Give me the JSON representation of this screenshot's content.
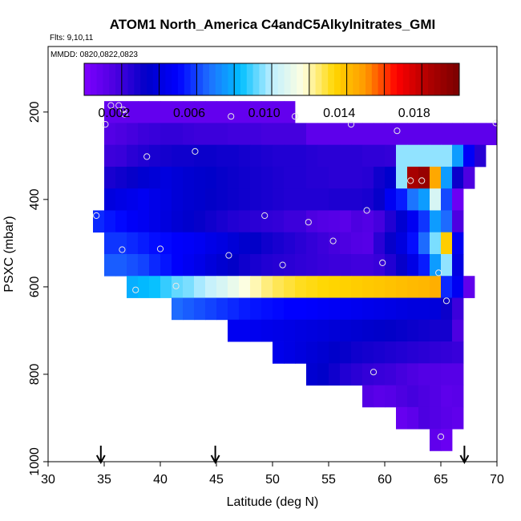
{
  "chart_data": {
    "type": "heatmap",
    "title": "ATOM1 North_America C4andC5Alkylnitrates_GMI",
    "annotations": {
      "flights": "Flts: 9,10,11",
      "dates": "MMDD: 0820,0822,0823"
    },
    "xlabel": "Latitude (deg N)",
    "ylabel": "PSXC (mbar)",
    "xlim": [
      30,
      70
    ],
    "ylim": [
      1000,
      50
    ],
    "y_reversed": true,
    "x_ticks": [
      "30",
      "35",
      "40",
      "45",
      "50",
      "55",
      "60",
      "65",
      "70"
    ],
    "y_ticks": [
      "200",
      "400",
      "600",
      "800",
      "1000"
    ],
    "colorbar": {
      "range": [
        0.0004,
        0.0204
      ],
      "tick_labels": [
        "0.002",
        "0.006",
        "0.010",
        "0.014",
        "0.018"
      ],
      "tick_values": [
        0.002,
        0.006,
        0.01,
        0.014,
        0.018
      ],
      "colors": [
        "#7f00ff",
        "#4b00e0",
        "#0000c8",
        "#0000ff",
        "#1e6fff",
        "#00bfff",
        "#bfefff",
        "#ffffe0",
        "#ffd700",
        "#ff9900",
        "#ff0000",
        "#b00000",
        "#7a0000"
      ]
    },
    "arrows_latitude": [
      34.7,
      44.9,
      67.1
    ],
    "cell_width_deg": 1,
    "cell_height_mbar": 50,
    "rows": [
      {
        "p": 200,
        "x0": 35,
        "v": [
          0.0013,
          0.0013,
          0.0013,
          0.0013,
          0.0013,
          0.0013,
          0.0013,
          0.0013,
          0.0013,
          0.0013,
          0.0013,
          0.0013,
          0.0013,
          0.0013,
          0.0013,
          0.0013,
          0.0013
        ]
      },
      {
        "p": 250,
        "x0": 35,
        "v": [
          0.0018,
          0.002,
          0.0022,
          0.0024,
          0.0025,
          0.0026,
          0.0026,
          0.0025,
          0.0024,
          0.0024,
          0.0024,
          0.0023,
          0.0023,
          0.0023,
          0.0022,
          0.0022,
          0.0022,
          0.0022,
          0.0015,
          0.0015,
          0.0015,
          0.0015,
          0.0015,
          0.0015,
          0.0015,
          0.0015,
          0.0015,
          0.0015,
          0.0015,
          0.0015,
          0.0015,
          0.0015,
          0.0015,
          0.0015,
          0.0015
        ]
      },
      {
        "p": 300,
        "x0": 35,
        "v": [
          0.0024,
          0.0025,
          0.0028,
          0.003,
          0.0032,
          0.0033,
          0.0034,
          0.0034,
          0.0035,
          0.0035,
          0.0034,
          0.0034,
          0.0033,
          0.0032,
          0.0031,
          0.003,
          0.003,
          0.003,
          0.0029,
          0.0028,
          0.0028,
          0.0028,
          0.0028,
          0.0027,
          0.0027,
          0.0026,
          0.01,
          0.01,
          0.01,
          0.01,
          0.01,
          0.008,
          0.0052,
          0.0029
        ]
      },
      {
        "p": 350,
        "x0": 35,
        "v": [
          0.0032,
          0.0034,
          0.0036,
          0.004,
          0.0042,
          0.0044,
          0.0042,
          0.004,
          0.0039,
          0.0038,
          0.0036,
          0.0035,
          0.0034,
          0.0033,
          0.0032,
          0.0031,
          0.003,
          0.003,
          0.0029,
          0.0029,
          0.0028,
          0.0028,
          0.0028,
          0.0029,
          0.0034,
          0.0039,
          0.01,
          0.019,
          0.0195,
          0.015,
          0.008,
          0.0035,
          0.002
        ]
      },
      {
        "p": 400,
        "x0": 35,
        "v": [
          0.0044,
          0.0046,
          0.0048,
          0.005,
          0.0047,
          0.0045,
          0.0042,
          0.004,
          0.0039,
          0.0037,
          0.0036,
          0.0035,
          0.0034,
          0.0033,
          0.0032,
          0.0031,
          0.003,
          0.003,
          0.003,
          0.003,
          0.0031,
          0.0031,
          0.0031,
          0.0032,
          0.0036,
          0.005,
          0.0058,
          0.0072,
          0.008,
          0.011,
          0.0065,
          0.001
        ]
      },
      {
        "p": 450,
        "x0": 34,
        "v": [
          0.006,
          0.0057,
          0.0055,
          0.0052,
          0.005,
          0.0047,
          0.0044,
          0.0041,
          0.0039,
          0.0036,
          0.0034,
          0.0032,
          0.003,
          0.0029,
          0.0028,
          0.0027,
          0.0026,
          0.0024,
          0.0024,
          0.002,
          0.0018,
          0.0017,
          0.0016,
          0.002,
          0.0018,
          0.0022,
          0.003,
          0.004,
          0.005,
          0.0062,
          0.008,
          0.007,
          0.002
        ]
      },
      {
        "p": 500,
        "x0": 35,
        "v": [
          0.0062,
          0.0062,
          0.006,
          0.0058,
          0.0056,
          0.0055,
          0.0053,
          0.0052,
          0.005,
          0.0047,
          0.0045,
          0.0042,
          0.0039,
          0.0037,
          0.0034,
          0.0032,
          0.003,
          0.0028,
          0.0026,
          0.0024,
          0.0022,
          0.002,
          0.0018,
          0.0017,
          0.0028,
          0.0036,
          0.0044,
          0.0056,
          0.007,
          0.0098,
          0.014,
          0.005
        ]
      },
      {
        "p": 550,
        "x0": 35,
        "v": [
          0.0068,
          0.0068,
          0.0066,
          0.0064,
          0.006,
          0.0057,
          0.0053,
          0.005,
          0.0047,
          0.0043,
          0.004,
          0.0037,
          0.0034,
          0.0032,
          0.003,
          0.0029,
          0.0028,
          0.0027,
          0.0026,
          0.0025,
          0.0024,
          0.0024,
          0.0023,
          0.0023,
          0.0025,
          0.003,
          0.0036,
          0.0046,
          0.0058,
          0.008,
          0.01,
          0.0045
        ]
      },
      {
        "p": 600,
        "x0": 37,
        "v": [
          0.0084,
          0.0086,
          0.0088,
          0.0092,
          0.0096,
          0.0098,
          0.0102,
          0.0106,
          0.011,
          0.0115,
          0.012,
          0.0124,
          0.0128,
          0.0131,
          0.0133,
          0.0135,
          0.0136,
          0.0137,
          0.0138,
          0.0139,
          0.014,
          0.0141,
          0.0142,
          0.0143,
          0.0144,
          0.0145,
          0.0146,
          0.0148,
          0.006,
          0.005,
          0.0014
        ]
      },
      {
        "p": 650,
        "x0": 41,
        "v": [
          0.007,
          0.0068,
          0.0066,
          0.0064,
          0.0062,
          0.006,
          0.0058,
          0.0057,
          0.0056,
          0.0055,
          0.0054,
          0.0054,
          0.0053,
          0.0052,
          0.0051,
          0.005,
          0.0049,
          0.0048,
          0.0047,
          0.0046,
          0.0045,
          0.0044,
          0.0044,
          0.0043,
          0.0035,
          0.0024
        ]
      },
      {
        "p": 700,
        "x0": 46,
        "v": [
          0.005,
          0.005,
          0.0049,
          0.0048,
          0.0047,
          0.0046,
          0.0045,
          0.0044,
          0.0043,
          0.0042,
          0.0041,
          0.004,
          0.0039,
          0.0038,
          0.0037,
          0.0036,
          0.0035,
          0.0034,
          0.0033,
          0.0033,
          0.002
        ]
      },
      {
        "p": 750,
        "x0": 50,
        "v": [
          0.0048,
          0.0046,
          0.0044,
          0.0042,
          0.004,
          0.0038,
          0.0036,
          0.0034,
          0.0033,
          0.0032,
          0.0031,
          0.003,
          0.0029,
          0.0028,
          0.0027,
          0.0026,
          0.0025
        ]
      },
      {
        "p": 800,
        "x0": 53,
        "v": [
          0.004,
          0.0038,
          0.0034,
          0.003,
          0.0028,
          0.0026,
          0.0025,
          0.0024,
          0.0022,
          0.002,
          0.0018,
          0.0018,
          0.0017,
          0.0017
        ]
      },
      {
        "p": 850,
        "x0": 58,
        "v": [
          0.0018,
          0.0016,
          0.0017,
          0.002,
          0.0022,
          0.002,
          0.0018,
          0.0015,
          0.0016
        ]
      },
      {
        "p": 900,
        "x0": 61,
        "v": [
          0.0012,
          0.0015,
          0.002,
          0.0018,
          0.0016,
          0.0014
        ]
      },
      {
        "p": 950,
        "x0": 64,
        "v": [
          0.0014,
          0.0011
        ]
      }
    ],
    "points": [
      {
        "lat": 35.6,
        "p": 185
      },
      {
        "lat": 36.3,
        "p": 185
      },
      {
        "lat": 36.7,
        "p": 195
      },
      {
        "lat": 36.8,
        "p": 205
      },
      {
        "lat": 35.1,
        "p": 228
      },
      {
        "lat": 46.3,
        "p": 210
      },
      {
        "lat": 52.0,
        "p": 210
      },
      {
        "lat": 57.0,
        "p": 228
      },
      {
        "lat": 61.1,
        "p": 243
      },
      {
        "lat": 69.9,
        "p": 225
      },
      {
        "lat": 38.8,
        "p": 302
      },
      {
        "lat": 43.1,
        "p": 290
      },
      {
        "lat": 62.3,
        "p": 357
      },
      {
        "lat": 63.3,
        "p": 357
      },
      {
        "lat": 34.3,
        "p": 437
      },
      {
        "lat": 49.3,
        "p": 437
      },
      {
        "lat": 53.2,
        "p": 452
      },
      {
        "lat": 58.4,
        "p": 425
      },
      {
        "lat": 55.4,
        "p": 495
      },
      {
        "lat": 36.6,
        "p": 515
      },
      {
        "lat": 40.0,
        "p": 513
      },
      {
        "lat": 46.1,
        "p": 528
      },
      {
        "lat": 50.9,
        "p": 550
      },
      {
        "lat": 59.8,
        "p": 545
      },
      {
        "lat": 64.8,
        "p": 568
      },
      {
        "lat": 37.8,
        "p": 607
      },
      {
        "lat": 41.4,
        "p": 598
      },
      {
        "lat": 65.5,
        "p": 632
      },
      {
        "lat": 59.0,
        "p": 795
      },
      {
        "lat": 65.0,
        "p": 943
      }
    ]
  }
}
